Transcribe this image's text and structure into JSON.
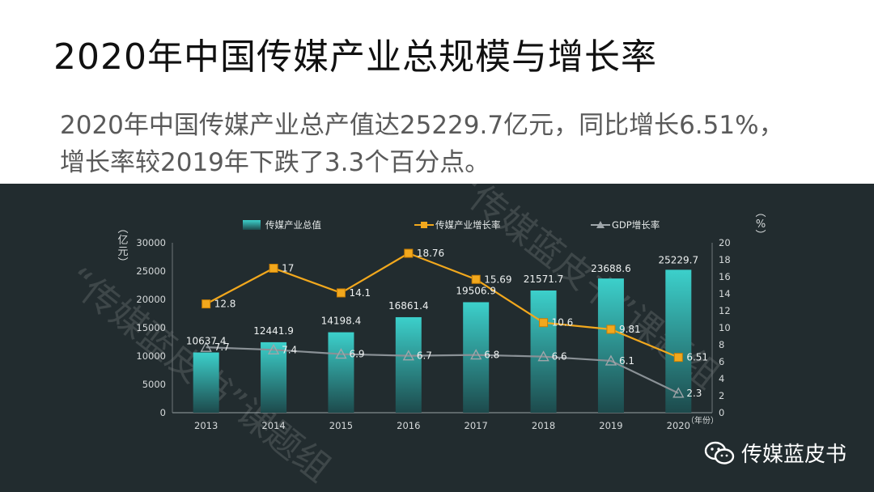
{
  "title": "2020年中国传媒产业总规模与增长率",
  "subtitle": "2020年中国传媒产业总产值达25229.7亿元，同比增长6.51%，增长率较2019年下跌了3.3个百分点。",
  "brand": {
    "label": "传媒蓝皮书",
    "icon": "wechat-icon"
  },
  "watermark": "“传媒蓝皮书”课题组",
  "chart_data": {
    "type": "bar",
    "categories": [
      "2013",
      "2014",
      "2015",
      "2016",
      "2017",
      "2018",
      "2019",
      "2020"
    ],
    "series": [
      {
        "name": "传媒产业总值",
        "kind": "bar",
        "axis": "left",
        "color": "#39c4c0",
        "values": [
          10637.4,
          12441.9,
          14198.4,
          16861.4,
          19506.9,
          21571.7,
          23688.6,
          25229.7
        ]
      },
      {
        "name": "传媒产业增长率",
        "kind": "line",
        "axis": "right",
        "color": "#f2a81d",
        "values": [
          12.8,
          17,
          14.1,
          18.76,
          15.69,
          10.6,
          9.81,
          6.51
        ]
      },
      {
        "name": "GDP增长率",
        "kind": "line",
        "axis": "right",
        "color": "#8a9196",
        "values": [
          7.7,
          7.4,
          6.9,
          6.7,
          6.8,
          6.6,
          6.1,
          2.3
        ]
      }
    ],
    "left_axis": {
      "label": "亿元",
      "ticks": [
        "0",
        "5000",
        "10000",
        "15000",
        "20000",
        "25000",
        "30000"
      ],
      "ylim": [
        0,
        30000
      ]
    },
    "right_axis": {
      "label": "%",
      "ticks": [
        "0",
        "2",
        "4",
        "6",
        "8",
        "10",
        "12",
        "14",
        "16",
        "18",
        "20"
      ],
      "ylim": [
        0,
        20
      ]
    },
    "xunit": "年份",
    "legend": "top",
    "grid": false
  }
}
